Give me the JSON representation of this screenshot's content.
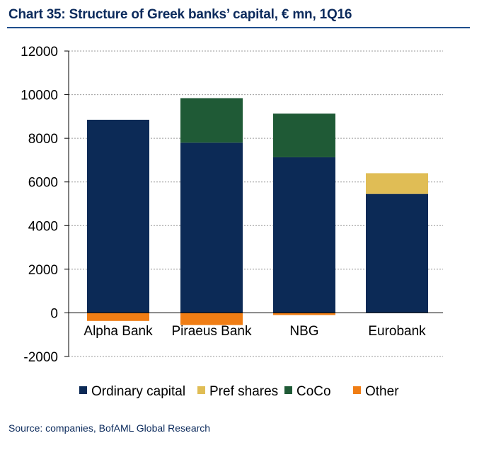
{
  "title": "Chart 35: Structure of Greek banks’ capital, € mn, 1Q16",
  "source": "Source: companies, BofAML Global Research",
  "chart_data": {
    "type": "bar",
    "stacked": true,
    "title": "Chart 35: Structure of Greek banks’ capital, € mn, 1Q16",
    "xlabel": "",
    "ylabel": "",
    "ylim": [
      -2000,
      12000
    ],
    "yticks": [
      12000,
      10000,
      8000,
      6000,
      4000,
      2000,
      0,
      -2000
    ],
    "grid": true,
    "legend_position": "bottom",
    "categories": [
      "Alpha Bank",
      "Piraeus Bank",
      "NBG",
      "Eurobank"
    ],
    "series": [
      {
        "name": "Ordinary capital",
        "color": "#0c2a56",
        "values": [
          8850,
          7800,
          7130,
          5450
        ]
      },
      {
        "name": "Pref shares",
        "color": "#e0bd55",
        "values": [
          0,
          0,
          0,
          950
        ]
      },
      {
        "name": "CoCo",
        "color": "#1f5a36",
        "values": [
          0,
          2040,
          2000,
          0
        ]
      },
      {
        "name": "Other",
        "color": "#f07d14",
        "values": [
          -370,
          -560,
          -100,
          0
        ]
      }
    ]
  }
}
